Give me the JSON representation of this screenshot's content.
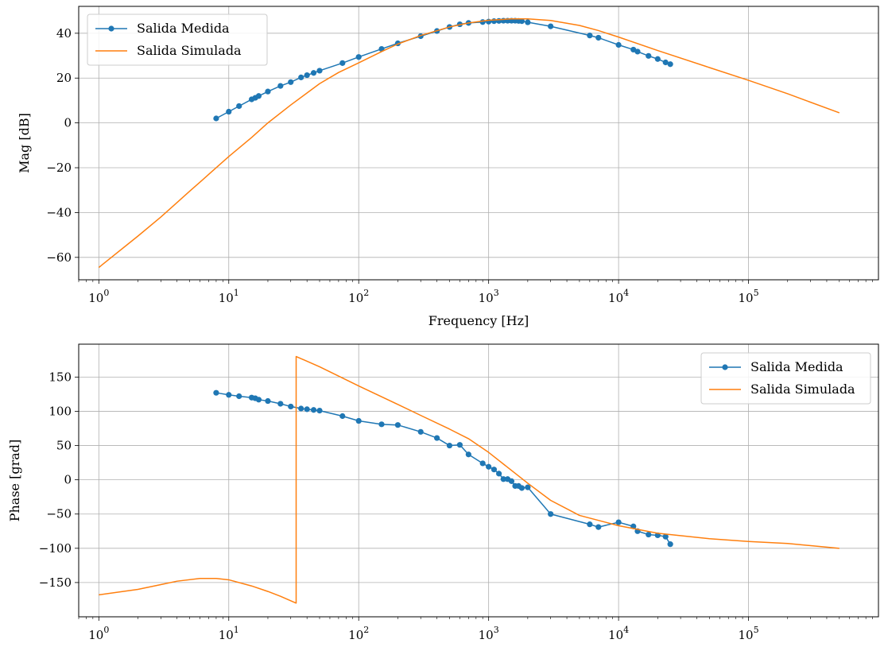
{
  "chart_data": [
    {
      "id": "magnitude",
      "type": "line",
      "xscale": "log",
      "xlim": [
        0.7,
        1000000
      ],
      "ylim": [
        -70,
        52
      ],
      "xlabel": "Frequency [Hz]",
      "ylabel": "Mag [dB]",
      "grid": true,
      "legend": "top-left",
      "xticks": [
        1,
        10,
        100,
        1000,
        10000,
        100000
      ],
      "xtick_labels": [
        {
          "base": "10",
          "exp": "0"
        },
        {
          "base": "10",
          "exp": "1"
        },
        {
          "base": "10",
          "exp": "2"
        },
        {
          "base": "10",
          "exp": "3"
        },
        {
          "base": "10",
          "exp": "4"
        },
        {
          "base": "10",
          "exp": "5"
        }
      ],
      "yticks": [
        -60,
        -40,
        -20,
        0,
        20,
        40
      ],
      "ytick_labels": [
        "−60",
        "−40",
        "−20",
        "0",
        "20",
        "40"
      ],
      "series": [
        {
          "name": "Salida Medida",
          "color": "#1f77b4",
          "marker": true,
          "x": [
            8,
            10,
            12,
            15,
            16,
            17,
            20,
            25,
            30,
            36,
            40,
            45,
            50,
            75,
            100,
            150,
            200,
            300,
            400,
            500,
            600,
            700,
            900,
            1000,
            1100,
            1200,
            1300,
            1400,
            1500,
            1600,
            1700,
            1800,
            2000,
            3000,
            6000,
            7000,
            10000,
            13000,
            14000,
            17000,
            20000,
            23000,
            25000
          ],
          "y": [
            2,
            5,
            7.5,
            10.5,
            11.2,
            12,
            14,
            16.5,
            18.2,
            20.3,
            21.3,
            22.3,
            23.3,
            26.7,
            29.4,
            33,
            35.5,
            38.7,
            41,
            42.8,
            44,
            44.6,
            45,
            45.2,
            45.4,
            45.5,
            45.6,
            45.6,
            45.6,
            45.6,
            45.5,
            45.4,
            44.9,
            43.1,
            39,
            38,
            34.8,
            32.7,
            31.8,
            29.9,
            28.5,
            27,
            26.2
          ]
        },
        {
          "name": "Salida Simulada",
          "color": "#ff7f0e",
          "marker": false,
          "x": [
            1,
            2,
            3,
            5,
            7,
            10,
            15,
            20,
            30,
            50,
            70,
            100,
            150,
            200,
            300,
            500,
            700,
            1000,
            1500,
            2000,
            3000,
            5000,
            7000,
            10000,
            20000,
            50000,
            100000,
            200000,
            500000
          ],
          "y": [
            -64.5,
            -50.5,
            -42,
            -30.5,
            -23,
            -15,
            -6.5,
            0,
            8,
            17.5,
            22.5,
            26.8,
            31.8,
            35.2,
            39,
            42.8,
            44.6,
            45.8,
            46.4,
            46.4,
            45.7,
            43.5,
            41.2,
            38.3,
            32.3,
            24.7,
            19,
            13,
            4.5
          ]
        }
      ]
    },
    {
      "id": "phase",
      "type": "line",
      "xscale": "log",
      "xlim": [
        0.7,
        1000000
      ],
      "ylim": [
        -200,
        198
      ],
      "xlabel": "",
      "ylabel": "Phase [grad]",
      "grid": true,
      "legend": "top-right",
      "xticks": [
        1,
        10,
        100,
        1000,
        10000,
        100000
      ],
      "xtick_labels": [
        {
          "base": "10",
          "exp": "0"
        },
        {
          "base": "10",
          "exp": "1"
        },
        {
          "base": "10",
          "exp": "2"
        },
        {
          "base": "10",
          "exp": "3"
        },
        {
          "base": "10",
          "exp": "4"
        },
        {
          "base": "10",
          "exp": "5"
        }
      ],
      "yticks": [
        -150,
        -100,
        -50,
        0,
        50,
        100,
        150
      ],
      "ytick_labels": [
        "−150",
        "−100",
        "−50",
        "0",
        "50",
        "100",
        "150"
      ],
      "series": [
        {
          "name": "Salida Medida",
          "color": "#1f77b4",
          "marker": true,
          "x": [
            8,
            10,
            12,
            15,
            16,
            17,
            20,
            25,
            30,
            36,
            40,
            45,
            50,
            75,
            100,
            150,
            200,
            300,
            400,
            500,
            600,
            700,
            900,
            1000,
            1100,
            1200,
            1300,
            1400,
            1500,
            1600,
            1700,
            1800,
            2000,
            3000,
            6000,
            7000,
            10000,
            13000,
            14000,
            17000,
            20000,
            23000,
            25000
          ],
          "y": [
            127,
            124,
            122,
            120,
            119,
            117,
            115,
            111,
            107,
            104,
            103,
            102,
            101,
            93,
            86,
            81,
            80,
            70,
            61,
            50,
            51,
            37,
            24,
            19,
            15,
            9,
            1,
            1,
            -2,
            -9,
            -9,
            -12,
            -11,
            -50,
            -65,
            -69,
            -62,
            -68,
            -75,
            -80,
            -81,
            -83,
            -94
          ]
        },
        {
          "name": "Salida Simulada",
          "color": "#ff7f0e",
          "marker": false,
          "x": [
            1,
            2,
            3,
            4,
            6,
            8,
            10,
            15,
            20,
            25,
            33,
            33.001,
            50,
            100,
            200,
            300,
            500,
            700,
            1000,
            2000,
            3000,
            5000,
            10000,
            20000,
            50000,
            100000,
            200000,
            500000
          ],
          "y": [
            -168,
            -160,
            -153,
            -148,
            -144,
            -144,
            -146,
            -155,
            -163,
            -170,
            -180,
            180,
            165,
            137,
            110,
            94,
            74,
            60,
            40,
            -5,
            -30,
            -52,
            -67,
            -78,
            -86,
            -90,
            -93,
            -100
          ]
        }
      ]
    }
  ]
}
